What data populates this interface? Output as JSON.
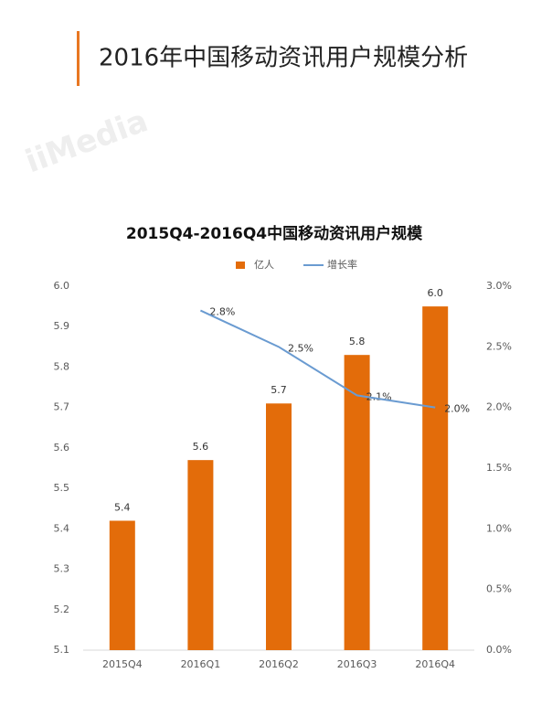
{
  "header": {
    "title": "2016年中国移动资讯用户规模分析"
  },
  "watermark": "iiMedia",
  "chart_data": {
    "type": "bar",
    "title": "2015Q4-2016Q4中国移动资讯用户规模",
    "categories": [
      "2015Q4",
      "2016Q1",
      "2016Q2",
      "2016Q3",
      "2016Q4"
    ],
    "series": [
      {
        "name": "亿人",
        "type": "bar",
        "color": "#e36c0a",
        "values": [
          5.42,
          5.57,
          5.71,
          5.83,
          5.95
        ],
        "value_labels": [
          "5.4",
          "5.6",
          "5.7",
          "5.8",
          "6.0"
        ]
      },
      {
        "name": "增长率",
        "type": "line",
        "axis": "y2",
        "color": "#6a9bd1",
        "values": [
          null,
          2.8,
          2.5,
          2.1,
          2.0
        ],
        "value_labels": [
          null,
          "2.8%",
          "2.5%",
          "2.1%",
          "2.0%"
        ]
      }
    ],
    "ylim": [
      5.1,
      6.0
    ],
    "yticks": [
      5.1,
      5.2,
      5.3,
      5.4,
      5.5,
      5.6,
      5.7,
      5.8,
      5.9,
      {
        "value": 6.0,
        "label": "6.0"
      }
    ],
    "y2lim": [
      0,
      3.0
    ],
    "y2ticks": [
      {
        "value": 0,
        "label": "0.0%"
      },
      {
        "value": 0.5,
        "label": "0.5%"
      },
      {
        "value": 1.0,
        "label": "1.0%"
      },
      {
        "value": 1.5,
        "label": "1.5%"
      },
      {
        "value": 2.0,
        "label": "2.0%"
      },
      {
        "value": 2.5,
        "label": "2.5%"
      },
      {
        "value": 3.0,
        "label": "3.0%"
      }
    ],
    "legend": "top",
    "grid": false
  }
}
